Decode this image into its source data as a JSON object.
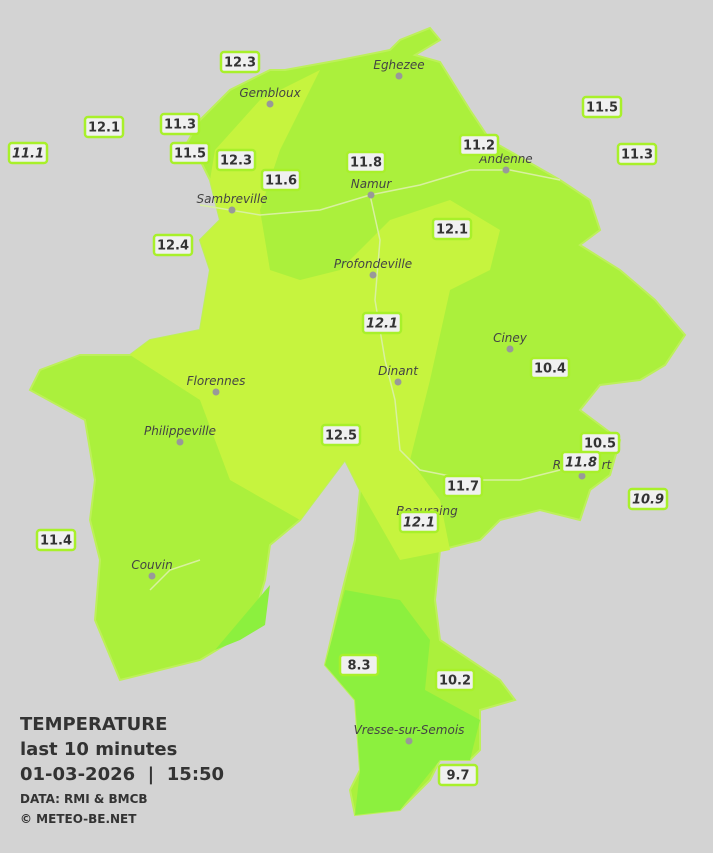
{
  "title": "TEMPERATURE",
  "subtitle": "last 10 minutes",
  "timestamp": "01-03-2026  |  15:50",
  "source": "DATA: RMI & BMCB",
  "copyright": "© METEO-BE.NET",
  "cities": [
    "Eghezee",
    "Gembloux",
    "Andenne",
    "Namur",
    "Sambreville",
    "Profondeville",
    "Ciney",
    "Dinant",
    "Florennes",
    "Philippeville",
    "Rochefort",
    "Beauraing",
    "Couvin",
    "Vresse-sur-Semois"
  ],
  "stations": [
    {
      "value": 12.3
    },
    {
      "value": 12.1
    },
    {
      "value": 11.3
    },
    {
      "value": 11.1,
      "italic": true
    },
    {
      "value": 11.5
    },
    {
      "value": 12.3
    },
    {
      "value": 11.6
    },
    {
      "value": 11.8
    },
    {
      "value": 11.2
    },
    {
      "value": 11.5
    },
    {
      "value": 11.3
    },
    {
      "value": 12.4
    },
    {
      "value": 12.1
    },
    {
      "value": 12.1,
      "italic": true
    },
    {
      "value": 10.4
    },
    {
      "value": 12.5
    },
    {
      "value": 10.5
    },
    {
      "value": 11.8,
      "italic": true
    },
    {
      "value": 10.9,
      "italic": true
    },
    {
      "value": 11.7
    },
    {
      "value": 12.1,
      "italic": true
    },
    {
      "value": 11.4
    },
    {
      "value": 8.3
    },
    {
      "value": 10.2
    },
    {
      "value": 9.7
    }
  ]
}
